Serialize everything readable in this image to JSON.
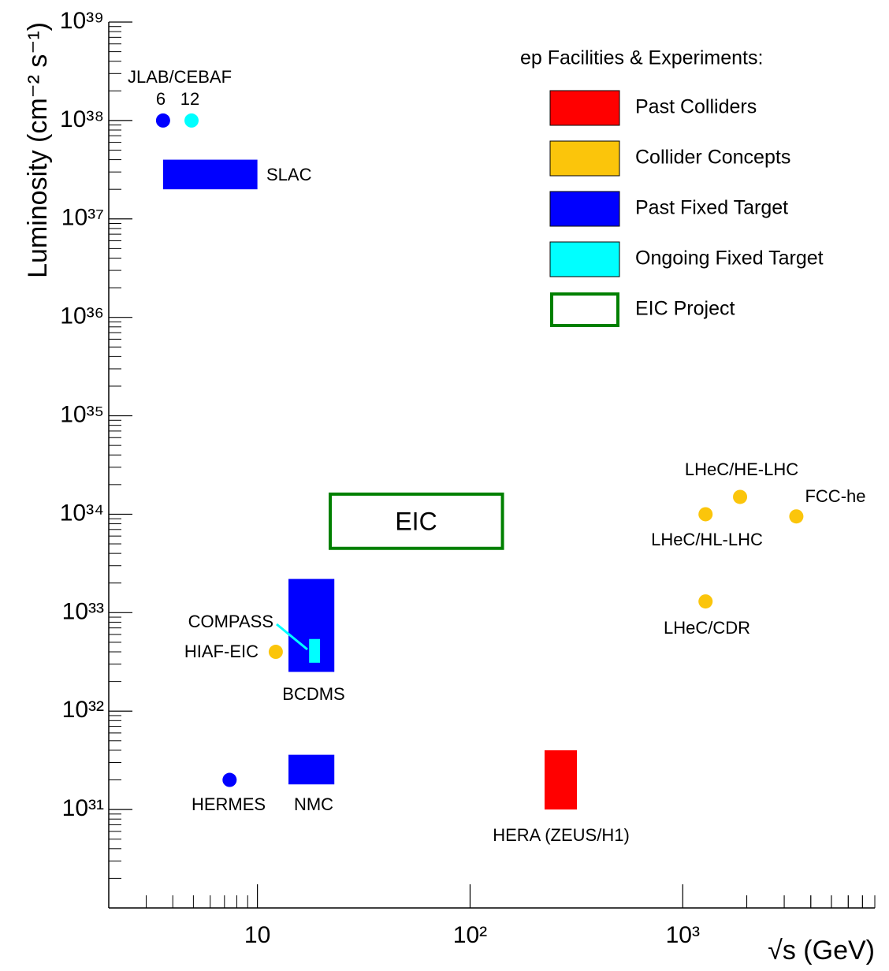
{
  "chart_data": {
    "type": "scatter",
    "x_label": "√s (GeV)",
    "y_label": "Luminosity (cm⁻² s⁻¹)",
    "xscale": "log",
    "yscale": "log",
    "xlim": [
      2,
      8000
    ],
    "ylim": [
      1e+30,
      1e+39
    ],
    "xticks": [
      10,
      {
        "value": 100,
        "label": "10²"
      },
      {
        "value": 1000,
        "label": "10³"
      }
    ],
    "yticks": [
      {
        "value": 1e+31,
        "label": "10³¹"
      },
      {
        "value": 1e+32,
        "label": "10³²"
      },
      {
        "value": 1e+33,
        "label": "10³³"
      },
      {
        "value": 1e+34,
        "label": "10³⁴"
      },
      {
        "value": 1e+35,
        "label": "10³⁵"
      },
      {
        "value": 1e+36,
        "label": "10³⁶"
      },
      {
        "value": 1e+37,
        "label": "10³⁷"
      },
      {
        "value": 1e+38,
        "label": "10³⁸"
      },
      {
        "value": 1e+39,
        "label": "10³⁹"
      }
    ],
    "minor_ticks": true,
    "legend_title": "ep Facilities & Experiments:",
    "legend": "top-right",
    "annotations": [
      "JLAB/CEBAF"
    ],
    "series": [
      {
        "name": "Past Colliders",
        "color": "#ff0000",
        "style": "fill",
        "items": [
          {
            "label": "HERA (ZEUS/H1)",
            "x": [
              224,
              318
            ],
            "y": [
              1e+31,
              4e+31
            ]
          }
        ]
      },
      {
        "name": "Collider Concepts",
        "color": "#fbc50b",
        "style": "fill",
        "items": [
          {
            "label": "HIAF-EIC",
            "x": 12.2,
            "y": 4e+32
          },
          {
            "label": "LHeC/HE-LHC",
            "x": 1860,
            "y": 1.5e+34
          },
          {
            "label": "FCC-he",
            "x": 3420,
            "y": 9.5e+33
          },
          {
            "label": "LHeC/HL-LHC",
            "x": 1280,
            "y": 1e+34
          },
          {
            "label": "LHeC/CDR",
            "x": 1280,
            "y": 1.3e+33
          }
        ]
      },
      {
        "name": "Past Fixed Target",
        "color": "#0000ff",
        "style": "fill",
        "items": [
          {
            "label": "SLAC",
            "x": [
              3.6,
              10
            ],
            "y": [
              2e+37,
              4e+37
            ]
          },
          {
            "label": "BCDMS",
            "x": [
              14,
              23
            ],
            "y": [
              2.5e+32,
              2.2e+33
            ]
          },
          {
            "label": "NMC",
            "x": [
              14,
              23
            ],
            "y": [
              1.8e+31,
              3.6e+31
            ]
          },
          {
            "label": "6",
            "x": 3.6,
            "y": 1e+38
          },
          {
            "label": "HERMES",
            "x": 7.4,
            "y": 2e+31
          }
        ]
      },
      {
        "name": "Ongoing Fixed Target",
        "color": "#00ffff",
        "style": "fill",
        "items": [
          {
            "label": "12",
            "x": 4.9,
            "y": 1e+38
          },
          {
            "label": "COMPASS",
            "x": [
              17.5,
              19.7
            ],
            "y": [
              3.1e+32,
              5.4e+32
            ]
          }
        ]
      },
      {
        "name": "EIC Project",
        "color": "#008000",
        "style": "outline",
        "items": [
          {
            "label": "EIC",
            "x": [
              22,
              142
            ],
            "y": [
              4.5e+33,
              1.6e+34
            ]
          }
        ]
      }
    ]
  }
}
